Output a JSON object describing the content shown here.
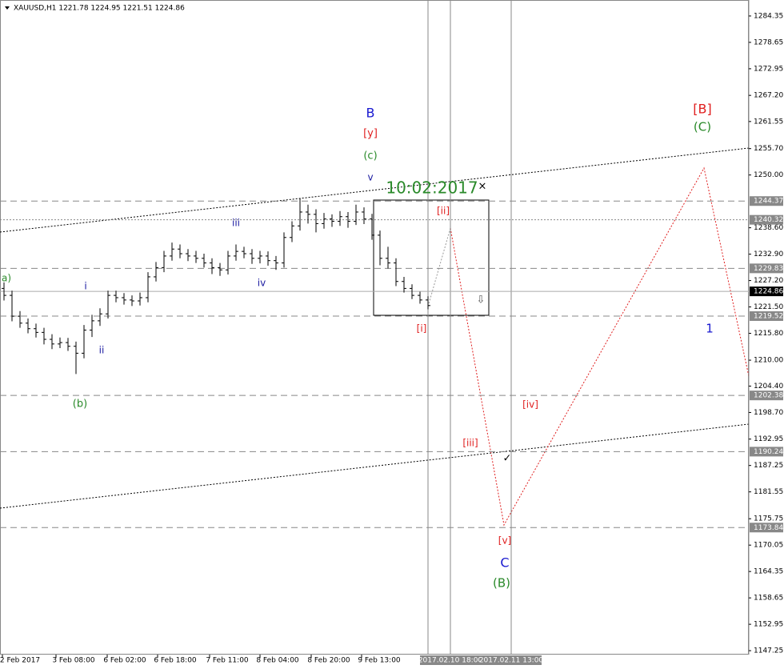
{
  "chart_data": {
    "type": "ohlc",
    "title": "XAUUSD,H1  1221.78 1224.95 1221.51 1224.86",
    "color": "#000000",
    "opens": [
      1225.5,
      1224.0,
      1219.5,
      1218.0,
      1216.8,
      1216.0,
      1214.5,
      1213.5,
      1213.8,
      1213.0,
      1211.5,
      1216.5,
      1218.5,
      1220.0,
      1224.0,
      1223.5,
      1223.0,
      1222.8,
      1223.5,
      1228.0,
      1230.0,
      1232.5,
      1234.0,
      1233.0,
      1232.5,
      1232.0,
      1231.0,
      1230.0,
      1229.5,
      1232.5,
      1233.5,
      1233.0,
      1232.0,
      1232.5,
      1231.5,
      1231.0,
      1236.5,
      1239.0,
      1242.0,
      1241.5,
      1239.5,
      1240.5,
      1240.0,
      1241.0,
      1240.0,
      1242.0,
      1240.5,
      1237.0,
      1232.0,
      1231.0,
      1227.0,
      1225.5,
      1224.0,
      1223.0
    ],
    "highs": [
      1226.8,
      1225.0,
      1220.6,
      1219.0,
      1217.9,
      1217.0,
      1215.6,
      1214.9,
      1214.8,
      1214.0,
      1217.6,
      1219.8,
      1221.2,
      1225.0,
      1225.0,
      1224.5,
      1224.0,
      1224.6,
      1229.0,
      1231.2,
      1233.6,
      1235.4,
      1235.0,
      1234.0,
      1233.6,
      1233.0,
      1232.0,
      1231.0,
      1233.6,
      1235.0,
      1234.5,
      1234.0,
      1233.6,
      1233.5,
      1232.5,
      1237.6,
      1240.0,
      1245.0,
      1243.6,
      1242.6,
      1241.8,
      1241.5,
      1242.2,
      1242.0,
      1243.6,
      1243.0,
      1241.6,
      1238.0,
      1234.5,
      1232.0,
      1228.0,
      1226.4,
      1224.8,
      1223.8
    ],
    "lows": [
      1222.9,
      1218.4,
      1217.0,
      1215.8,
      1214.9,
      1213.4,
      1212.4,
      1212.6,
      1212.0,
      1207.0,
      1210.4,
      1215.0,
      1217.4,
      1219.0,
      1222.5,
      1222.0,
      1221.7,
      1221.8,
      1222.5,
      1227.0,
      1229.0,
      1231.5,
      1232.0,
      1231.4,
      1231.0,
      1230.0,
      1228.6,
      1228.2,
      1228.5,
      1231.5,
      1232.0,
      1230.8,
      1230.9,
      1230.4,
      1229.5,
      1230.0,
      1235.5,
      1238.0,
      1239.5,
      1237.6,
      1238.4,
      1238.8,
      1239.0,
      1238.6,
      1239.2,
      1239.4,
      1236.0,
      1230.5,
      1229.8,
      1226.0,
      1224.6,
      1223.2,
      1222.2,
      1221.0
    ],
    "closes": [
      1224.0,
      1219.5,
      1218.0,
      1216.8,
      1216.0,
      1214.5,
      1213.5,
      1213.8,
      1213.0,
      1211.5,
      1216.5,
      1218.5,
      1220.0,
      1224.0,
      1223.5,
      1223.0,
      1222.8,
      1223.5,
      1228.0,
      1230.0,
      1232.5,
      1234.0,
      1233.0,
      1232.5,
      1232.0,
      1231.0,
      1230.0,
      1229.5,
      1232.5,
      1233.5,
      1233.0,
      1232.0,
      1232.5,
      1231.5,
      1231.0,
      1236.5,
      1239.0,
      1242.0,
      1241.5,
      1239.5,
      1240.5,
      1240.0,
      1241.0,
      1240.0,
      1242.0,
      1240.5,
      1237.0,
      1232.0,
      1231.0,
      1227.0,
      1225.5,
      1224.0,
      1223.0,
      1221.8
    ],
    "ylim": [
      1146.4,
      1287.8
    ],
    "yticks": [
      1284.35,
      1278.65,
      1272.95,
      {
        "value": 1267.2,
        "label": "1267.20"
      },
      1261.55,
      {
        "value": 1255.7,
        "label": "1255.70"
      },
      {
        "value": 1250,
        "label": "1250.00"
      },
      {
        "value": 1238.6,
        "label": "1238.60"
      },
      {
        "value": 1232.9,
        "label": "1232.90"
      },
      {
        "value": 1227.2,
        "label": "1227.20"
      },
      {
        "value": 1221.5,
        "label": "1221.50"
      },
      {
        "value": 1215.8,
        "label": "1215.80"
      },
      {
        "value": 1210,
        "label": "1210.00"
      },
      {
        "value": 1204.4,
        "label": "1204.40"
      },
      {
        "value": 1198.7,
        "label": "1198.70"
      },
      1192.95,
      1187.25,
      1181.55,
      1175.75,
      1170.05,
      1164.35,
      1158.65,
      1152.95,
      1147.25
    ],
    "grid": false,
    "levels": [
      {
        "value": 1244.37,
        "style": "dashed"
      },
      {
        "value": 1240.32,
        "style": "dotted"
      },
      {
        "value": 1229.83,
        "style": "dashed"
      },
      {
        "value": 1224.86,
        "style": "current"
      },
      {
        "value": 1219.52,
        "style": "dashed"
      },
      {
        "value": 1202.38,
        "style": "dashed"
      },
      {
        "value": 1190.24,
        "style": "dashed"
      },
      {
        "value": 1173.84,
        "style": "dashed"
      }
    ],
    "xlabels": [
      "2 Feb 2017",
      "3 Feb 08:00",
      "6 Feb 02:00",
      "6 Feb 18:00",
      "7 Feb 11:00",
      "8 Feb 04:00",
      "8 Feb 20:00",
      "9 Feb 13:00"
    ],
    "vlines": [
      "2017.02.10 18:00",
      "2017.02.11 13:00"
    ],
    "annotations": [
      {
        "text": "B",
        "color": "#1a1ad0"
      },
      {
        "text": "[y]",
        "color": "#e02020"
      },
      {
        "text": "(c)",
        "color": "#2a8a2a"
      },
      {
        "text": "v",
        "color": "#1a1aa0"
      },
      {
        "text": "10:02:2017",
        "color": "#2a8a2a"
      },
      {
        "text": "×",
        "color": "#000000"
      },
      {
        "text": "iii",
        "color": "#1a1aa0"
      },
      {
        "text": "iv",
        "color": "#1a1aa0"
      },
      {
        "text": "i",
        "color": "#1a1aa0"
      },
      {
        "text": "ii",
        "color": "#1a1aa0"
      },
      {
        "text": "a)",
        "color": "#2a8a2a"
      },
      {
        "text": "(b)",
        "color": "#2a8a2a"
      },
      {
        "text": "[ii]",
        "color": "#e02020"
      },
      {
        "text": "[i]",
        "color": "#e02020"
      },
      {
        "text": "[iii]",
        "color": "#e02020"
      },
      {
        "text": "[iv]",
        "color": "#e02020"
      },
      {
        "text": "[v]",
        "color": "#e02020"
      },
      {
        "text": "C",
        "color": "#1a1ad0"
      },
      {
        "text": "(B)",
        "color": "#2a8a2a"
      },
      {
        "text": "[B]",
        "color": "#e02020"
      },
      {
        "text": "(C)",
        "color": "#2a8a2a"
      },
      {
        "text": "1",
        "color": "#1a1ad0"
      },
      {
        "text": "✓",
        "color": "#000000"
      },
      {
        "text": "⇩",
        "color": "#555555"
      }
    ]
  }
}
